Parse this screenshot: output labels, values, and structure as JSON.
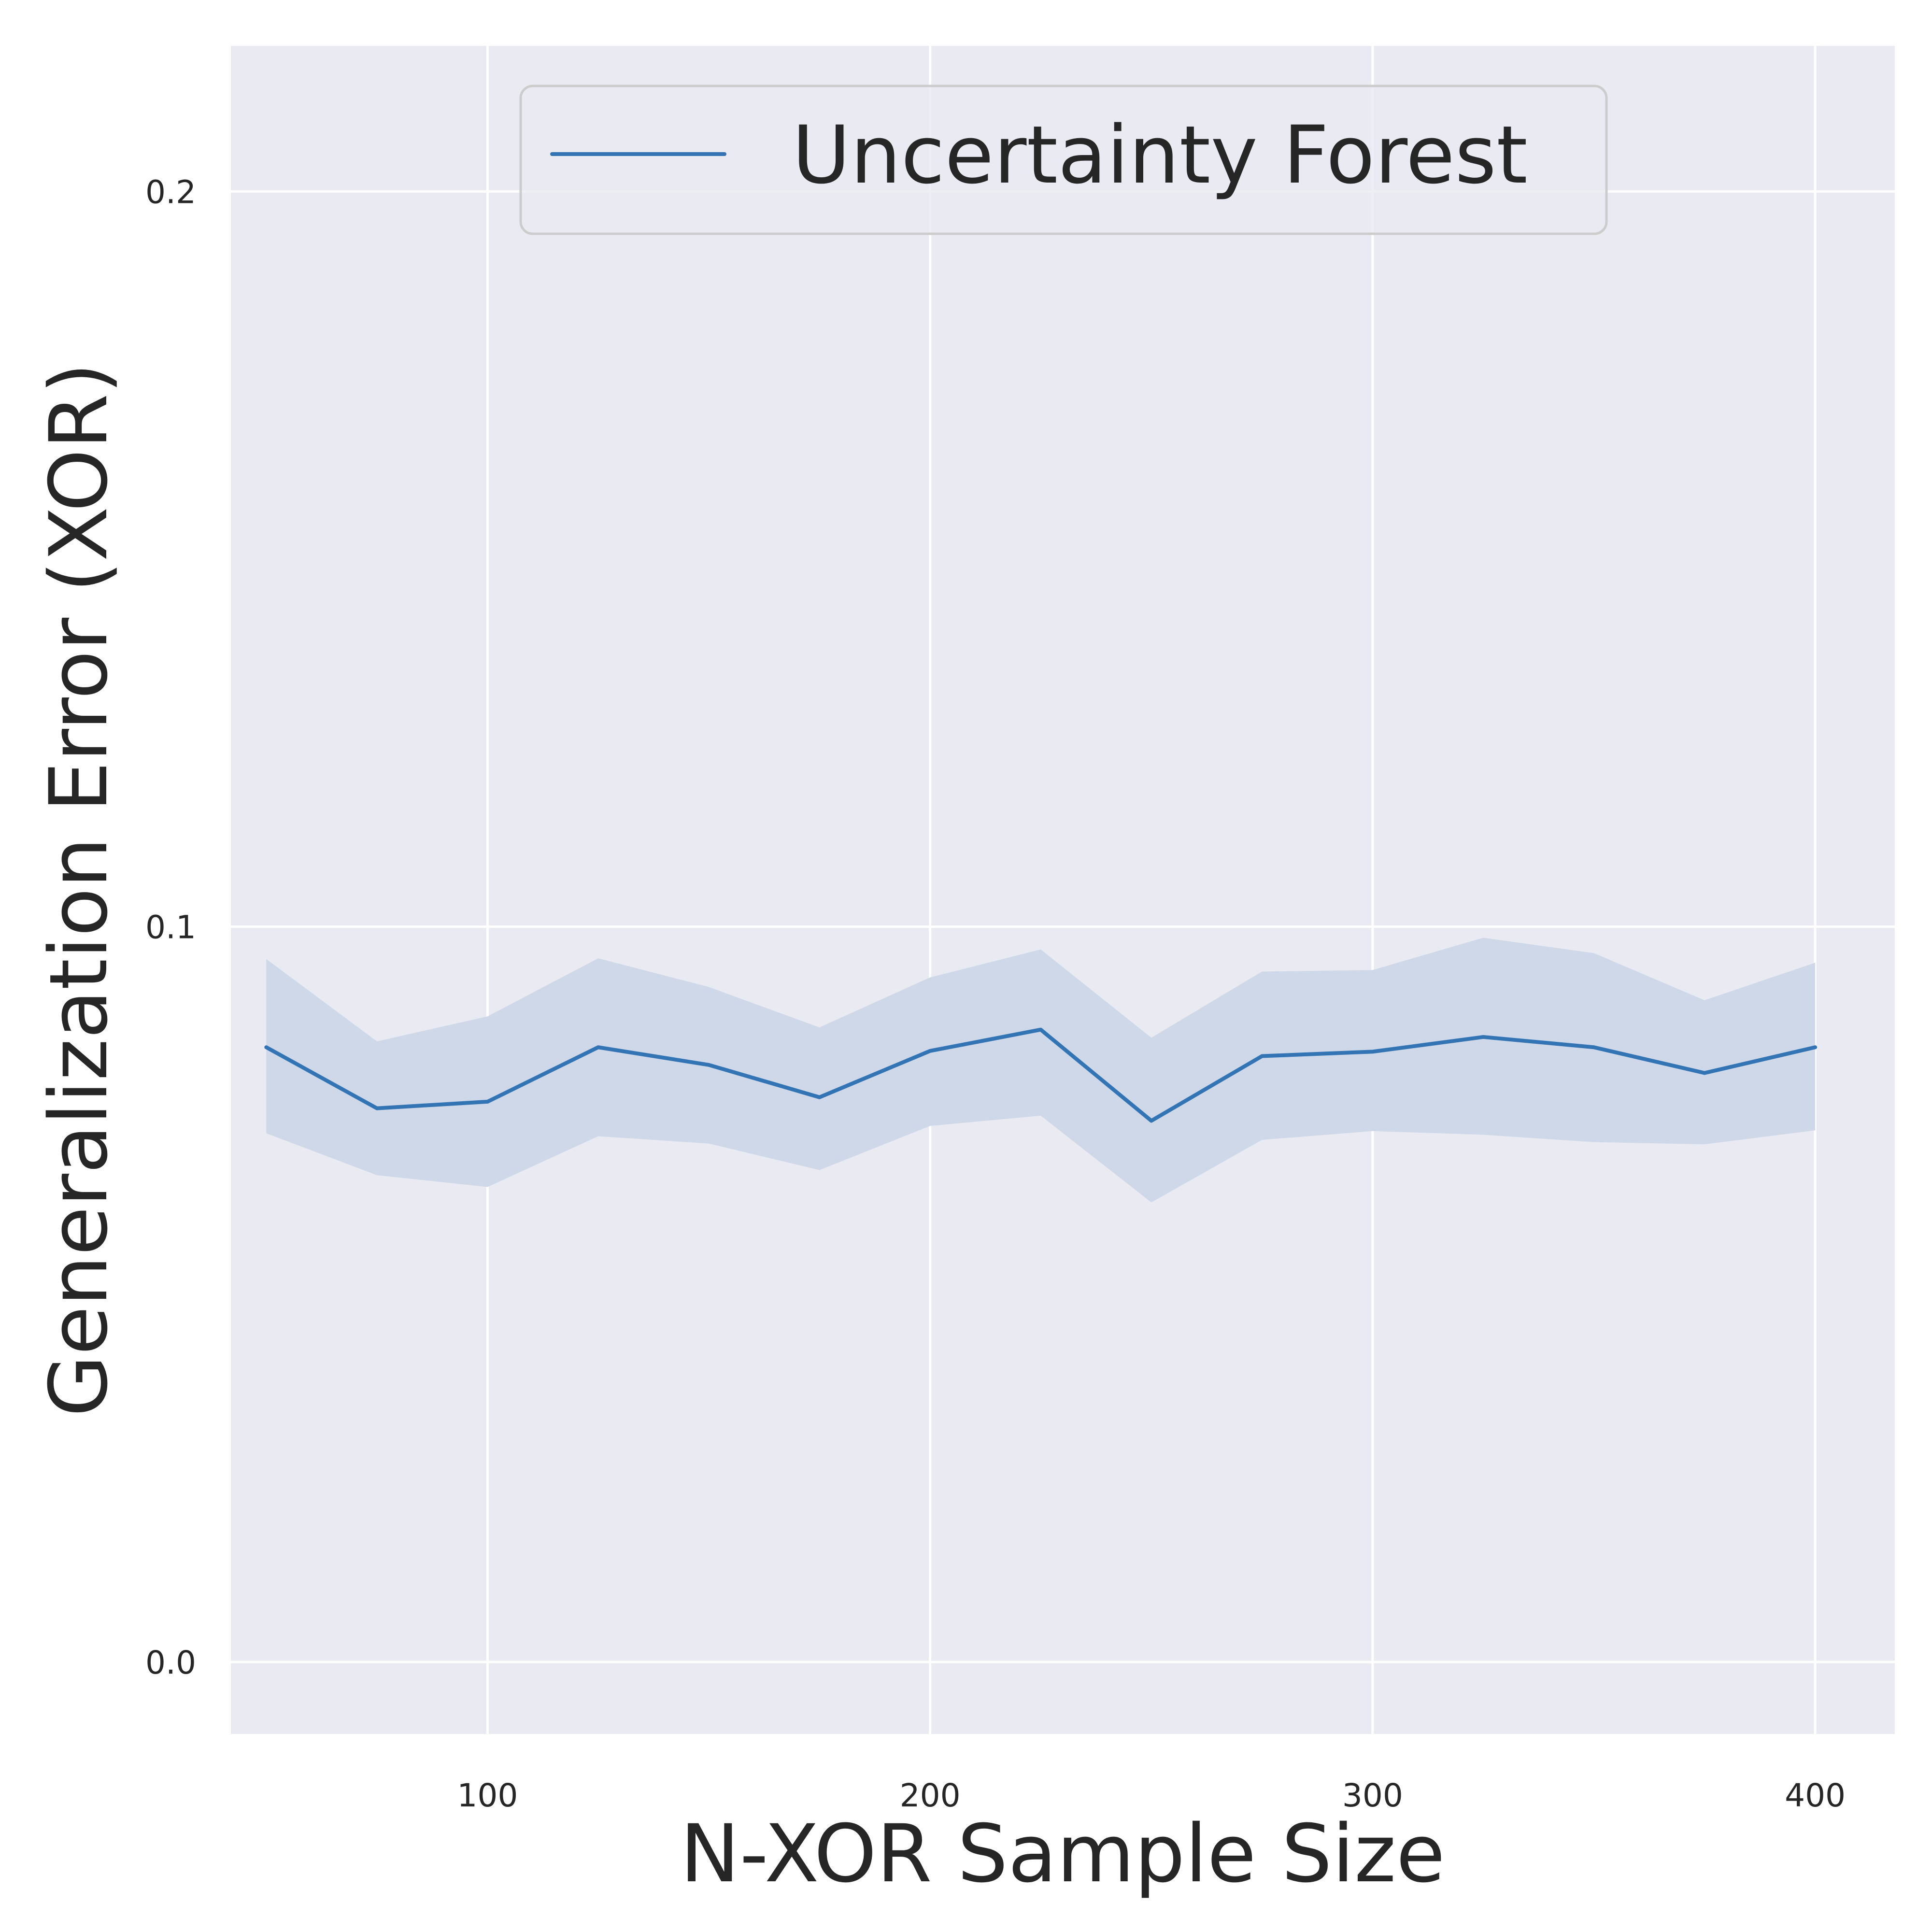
{
  "chart_data": {
    "type": "line",
    "title": "",
    "xlabel": "N-XOR Sample Size",
    "ylabel": "Generalization Error (XOR)",
    "xlim": [
      42,
      418
    ],
    "ylim": [
      -0.0098,
      0.2198
    ],
    "xticks": [
      100,
      200,
      300,
      400
    ],
    "xtick_labels": [
      "100",
      "200",
      "300",
      "400"
    ],
    "yticks": [
      0.0,
      0.1,
      0.2
    ],
    "ytick_labels": [
      "0.0",
      "0.1",
      "0.2"
    ],
    "grid": true,
    "legend_position": "upper-center",
    "series": [
      {
        "name": "Uncertainty Forest",
        "color": "#3274b4",
        "band_color": "#cfd8e8",
        "x": [
          50,
          75,
          100,
          125,
          150,
          175,
          200,
          225,
          250,
          275,
          300,
          325,
          350,
          375,
          400
        ],
        "y": [
          0.0836,
          0.0753,
          0.0762,
          0.0836,
          0.0812,
          0.0768,
          0.0831,
          0.086,
          0.0736,
          0.0824,
          0.083,
          0.085,
          0.0836,
          0.0801,
          0.0836
        ],
        "lower": [
          0.0719,
          0.0662,
          0.0646,
          0.0715,
          0.0705,
          0.0669,
          0.0729,
          0.0743,
          0.0625,
          0.071,
          0.0722,
          0.0717,
          0.0707,
          0.0704,
          0.0723
        ],
        "upper": [
          0.0956,
          0.0844,
          0.0878,
          0.0957,
          0.0918,
          0.0863,
          0.0931,
          0.0969,
          0.0849,
          0.0939,
          0.0941,
          0.0985,
          0.0964,
          0.09,
          0.0951
        ]
      }
    ]
  }
}
